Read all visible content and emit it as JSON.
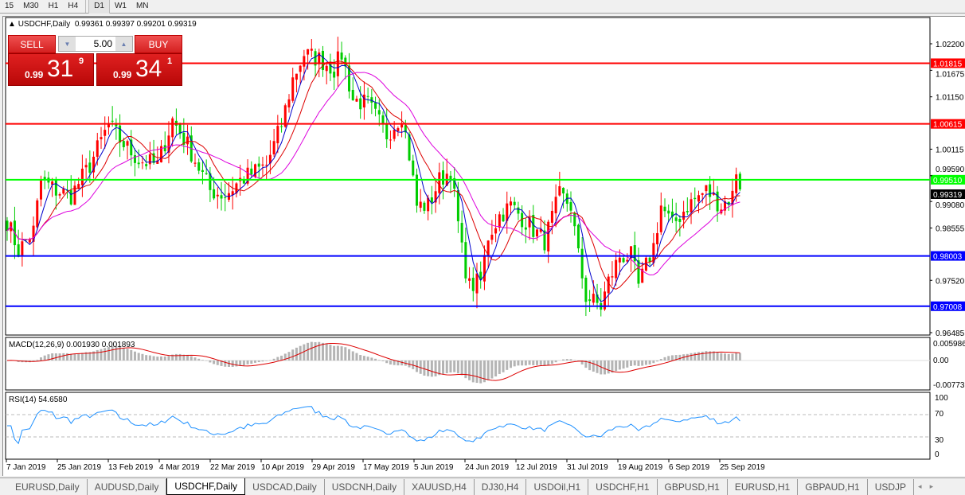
{
  "timeframes": [
    "15",
    "M30",
    "H1",
    "H4",
    "D1",
    "W1",
    "MN"
  ],
  "active_timeframe": "D1",
  "header": {
    "symbol": "USDCHF,Daily",
    "ohlc": "0.99361 0.99397 0.99201 0.99319"
  },
  "trade_panel": {
    "sell_label": "SELL",
    "buy_label": "BUY",
    "lot": "5.00",
    "sell_prefix": "0.99",
    "sell_big": "31",
    "sell_sup": "9",
    "buy_prefix": "0.99",
    "buy_big": "34",
    "buy_sup": "1"
  },
  "colors": {
    "bull": "#ff0000",
    "bear": "#00cc00",
    "ma_fast": "#0000cc",
    "ma_mid": "#dd0000",
    "ma_slow": "#dd00dd",
    "macd_hist": "#b4b4b4",
    "macd_signal": "#dd0000",
    "rsi": "#1e90ff"
  },
  "price_axis": [
    "1.02200",
    "1.01675",
    "1.01150",
    "1.00115",
    "0.99590",
    "0.99080",
    "0.98555",
    "0.97520",
    "0.96485"
  ],
  "levels": [
    {
      "price": 1.01815,
      "label": "1.01815",
      "color": "#ff0000"
    },
    {
      "price": 1.00615,
      "label": "1.00615",
      "color": "#ff0000"
    },
    {
      "price": 0.9951,
      "label": "0.99510",
      "color": "#00ff00"
    },
    {
      "price": 0.98003,
      "label": "0.98003",
      "color": "#0000ff"
    },
    {
      "price": 0.97008,
      "label": "0.97008",
      "color": "#0000ff"
    }
  ],
  "current_price": "0.99319",
  "macd": {
    "label": "MACD(12,26,9) 0.001930 0.001893",
    "axis": [
      "0.005986",
      "0.00",
      "-0.007737"
    ]
  },
  "rsi": {
    "label": "RSI(14) 54.6580",
    "axis": [
      "100",
      "70",
      "30",
      "0"
    ]
  },
  "date_axis": [
    "7 Jan 2019",
    "25 Jan 2019",
    "13 Feb 2019",
    "4 Mar 2019",
    "22 Mar 2019",
    "10 Apr 2019",
    "29 Apr 2019",
    "17 May 2019",
    "5 Jun 2019",
    "24 Jun 2019",
    "12 Jul 2019",
    "31 Jul 2019",
    "19 Aug 2019",
    "6 Sep 2019",
    "25 Sep 2019"
  ],
  "tabs": [
    "EURUSD,Daily",
    "AUDUSD,Daily",
    "USDCHF,Daily",
    "USDCAD,Daily",
    "USDCNH,Daily",
    "XAUUSD,H4",
    "DJ30,H4",
    "USDOil,H1",
    "USDCHF,H1",
    "GBPUSD,H1",
    "EURUSD,H1",
    "GBPAUD,H1",
    "USDJP"
  ],
  "active_tab": "USDCHF,Daily",
  "chart_data": {
    "type": "candlestick",
    "symbol": "USDCHF",
    "timeframe": "Daily",
    "ylim": [
      0.96485,
      1.022
    ],
    "close_path": [
      [
        0,
        0.987
      ],
      [
        3,
        0.981
      ],
      [
        7,
        0.985
      ],
      [
        9,
        0.995
      ],
      [
        13,
        0.993
      ],
      [
        17,
        0.992
      ],
      [
        22,
        0.998
      ],
      [
        27,
        1.006
      ],
      [
        30,
        1.003
      ],
      [
        35,
        0.999
      ],
      [
        40,
        0.998
      ],
      [
        44,
        1.007
      ],
      [
        48,
        1.002
      ],
      [
        54,
        0.993
      ],
      [
        58,
        0.992
      ],
      [
        62,
        0.995
      ],
      [
        69,
        0.998
      ],
      [
        73,
        1.006
      ],
      [
        76,
        1.015
      ],
      [
        79,
        1.02
      ],
      [
        83,
        1.019
      ],
      [
        87,
        1.017
      ],
      [
        89,
        1.02
      ],
      [
        92,
        1.011
      ],
      [
        96,
        1.01
      ],
      [
        101,
        1.004
      ],
      [
        105,
        1.008
      ],
      [
        107,
        1.0
      ],
      [
        109,
        0.99
      ],
      [
        112,
        0.99
      ],
      [
        115,
        0.995
      ],
      [
        118,
        0.997
      ],
      [
        121,
        0.981
      ],
      [
        123,
        0.974
      ],
      [
        126,
        0.975
      ],
      [
        128,
        0.984
      ],
      [
        131,
        0.988
      ],
      [
        134,
        0.99
      ],
      [
        139,
        0.986
      ],
      [
        143,
        0.983
      ],
      [
        147,
        0.992
      ],
      [
        150,
        0.99
      ],
      [
        152,
        0.98
      ],
      [
        154,
        0.972
      ],
      [
        158,
        0.97
      ],
      [
        160,
        0.975
      ],
      [
        163,
        0.98
      ],
      [
        166,
        0.98
      ],
      [
        168,
        0.974
      ],
      [
        172,
        0.982
      ],
      [
        174,
        0.99
      ],
      [
        177,
        0.986
      ],
      [
        181,
        0.99
      ],
      [
        186,
        0.993
      ],
      [
        190,
        0.99
      ],
      [
        193,
        0.992
      ],
      [
        194,
        0.997
      ],
      [
        195,
        0.99319
      ]
    ]
  }
}
